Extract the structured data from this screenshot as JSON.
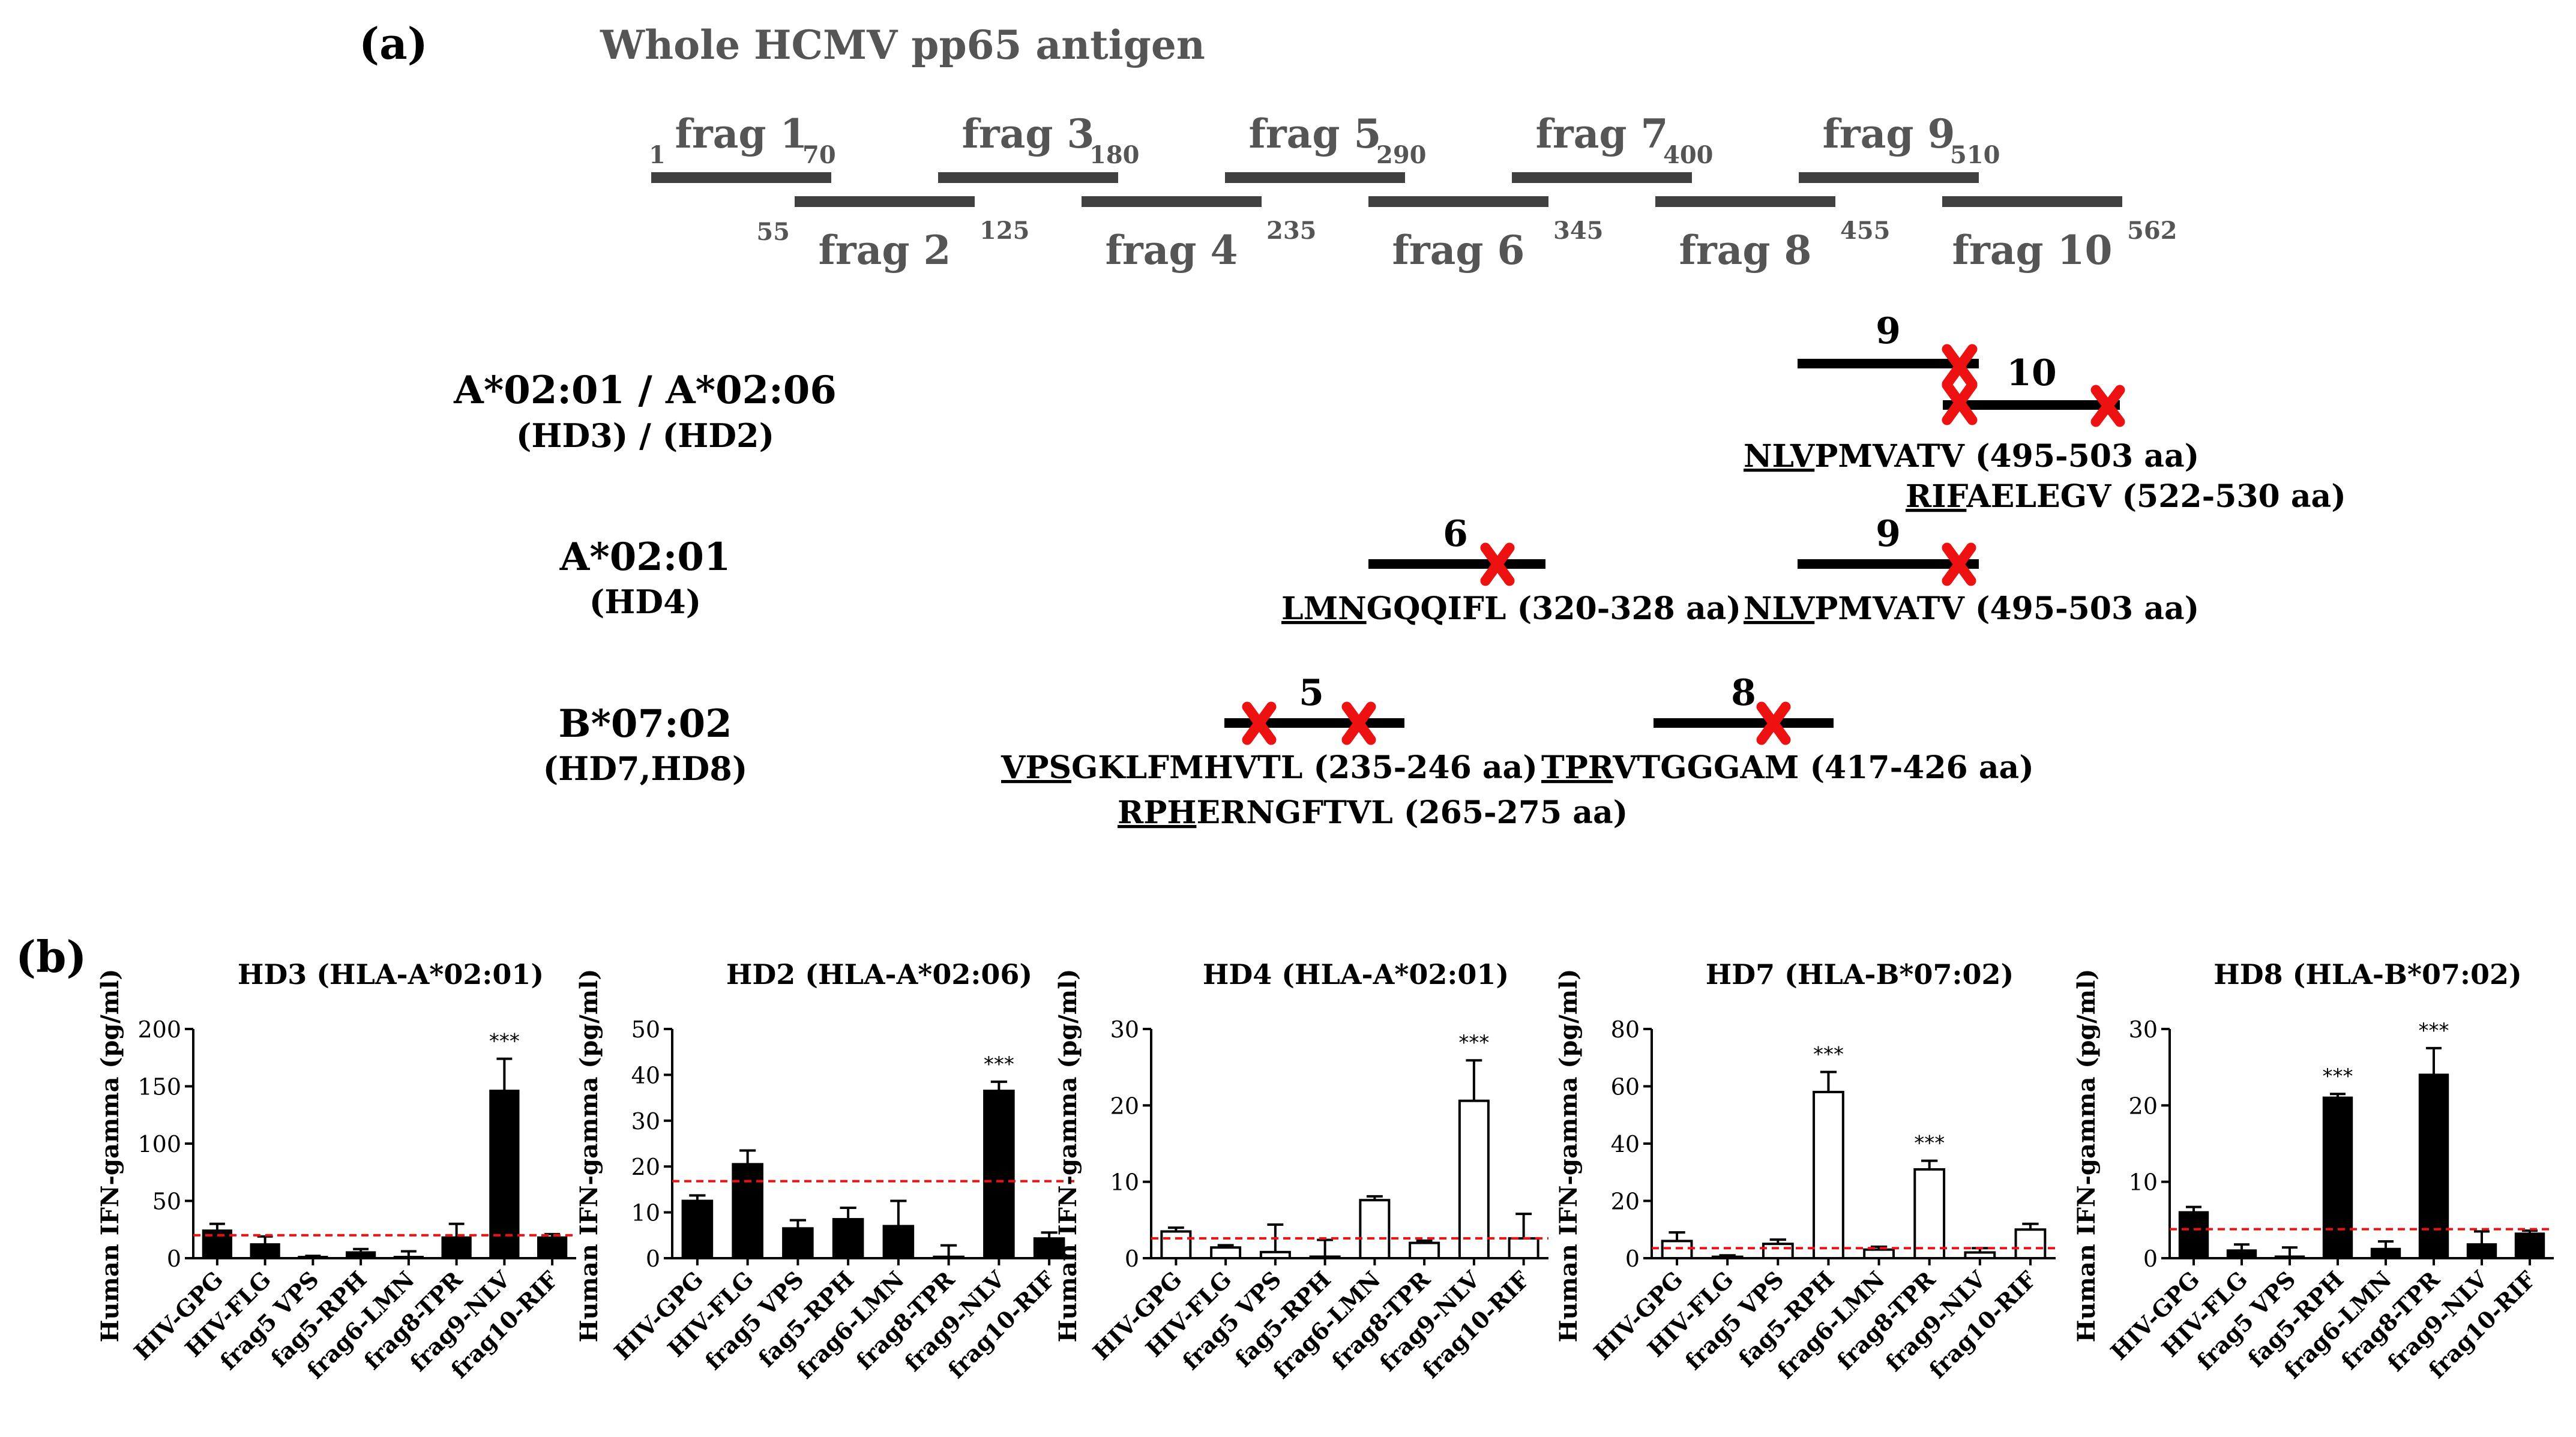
{
  "panel_a": {
    "label": "(a)",
    "title": "Whole HCMV pp65 antigen",
    "fragments": [
      {
        "name": "frag 1",
        "start": "1",
        "end": "70",
        "row": "top"
      },
      {
        "name": "frag 2",
        "start": "55",
        "end": "125",
        "row": "bottom"
      },
      {
        "name": "frag 3",
        "start": "",
        "end": "180",
        "row": "top"
      },
      {
        "name": "frag 4",
        "start": "",
        "end": "235",
        "row": "bottom"
      },
      {
        "name": "frag 5",
        "start": "",
        "end": "290",
        "row": "top"
      },
      {
        "name": "frag 6",
        "start": "",
        "end": "345",
        "row": "bottom"
      },
      {
        "name": "frag 7",
        "start": "",
        "end": "400",
        "row": "top"
      },
      {
        "name": "frag 8",
        "start": "",
        "end": "455",
        "row": "bottom"
      },
      {
        "name": "frag 9",
        "start": "",
        "end": "510",
        "row": "top"
      },
      {
        "name": "frag 10",
        "start": "",
        "end": "562",
        "row": "bottom"
      }
    ],
    "groups": [
      {
        "hla": "A*02:01 / A*02:06",
        "donor": "(HD3) / (HD2)",
        "bars": [
          {
            "num": "9"
          },
          {
            "num": "10"
          }
        ],
        "peptides": [
          {
            "underlined": "NLV",
            "rest": "PMVATV (495-503 aa)"
          },
          {
            "underlined": "RIF",
            "rest": "AELEGV (522-530 aa)"
          }
        ]
      },
      {
        "hla": "A*02:01",
        "donor": "(HD4)",
        "bars": [
          {
            "num": "6"
          },
          {
            "num": "9"
          }
        ],
        "peptides": [
          {
            "underlined": "LMN",
            "rest": "GQQIFL (320-328 aa)"
          },
          {
            "underlined": "NLV",
            "rest": "PMVATV (495-503 aa)"
          }
        ]
      },
      {
        "hla": "B*07:02",
        "donor": "(HD7,HD8)",
        "bars": [
          {
            "num": "5"
          },
          {
            "num": "8"
          }
        ],
        "peptides": [
          {
            "underlined": "VPS",
            "rest": "GKLFMHVTL (235-246 aa)"
          },
          {
            "underlined": "TPR",
            "rest": "VTGGGAM (417-426 aa)"
          },
          {
            "underlined": "RPH",
            "rest": "ERNGFTVL (265-275 aa)"
          }
        ]
      }
    ]
  },
  "panel_b": {
    "label": "(b)"
  },
  "colors": {
    "frag_bar": "#404040",
    "epitope_bar": "#000000",
    "cross": "#ee1111",
    "threshold": "#ee1111",
    "filled_bar": "#000000",
    "open_bar": "#ffffff"
  },
  "chart_data": [
    {
      "type": "bar",
      "title": "HD3 (HLA-A*02:01)",
      "ylabel": "Human IFN-gamma (pg/ml)",
      "categories": [
        "HIV-GPG",
        "HIV-FLG",
        "frag5 VPS",
        "fag5-RPH",
        "frag6-LMN",
        "frag8-TPR",
        "frag9-NLV",
        "frag10-RIF"
      ],
      "values": [
        24,
        12,
        1,
        5,
        1,
        18,
        146,
        18
      ],
      "errors": [
        6,
        7,
        1,
        3,
        5,
        12,
        28,
        3
      ],
      "ylim": [
        0,
        200
      ],
      "yticks": [
        "0",
        "50",
        "100",
        "150",
        "200"
      ],
      "threshold": 20,
      "fill": "filled",
      "significance": [
        {
          "index": 6,
          "label": "***"
        }
      ]
    },
    {
      "type": "bar",
      "title": "HD2 (HLA-A*02:06)",
      "ylabel": "Human IFN-gamma (pg/ml)",
      "categories": [
        "HIV-GPG",
        "HIV-FLG",
        "frag5 VPS",
        "fag5-RPH",
        "frag6-LMN",
        "frag8-TPR",
        "frag9-NLV",
        "frag10-RIF"
      ],
      "values": [
        12.5,
        20.5,
        6.5,
        8.5,
        7,
        0.3,
        36.5,
        4.3
      ],
      "errors": [
        1.2,
        3,
        1.8,
        2.5,
        5.5,
        2.5,
        2,
        1.3
      ],
      "ylim": [
        0,
        50
      ],
      "yticks": [
        "0",
        "10",
        "20",
        "30",
        "40",
        "50"
      ],
      "threshold": 16.8,
      "fill": "filled",
      "significance": [
        {
          "index": 6,
          "label": "***"
        }
      ]
    },
    {
      "type": "bar",
      "title": "HD4 (HLA-A*02:01)",
      "ylabel": "Human IFN-gamma (pg/ml)",
      "categories": [
        "HIV-GPG",
        "HIV-FLG",
        "frag5 VPS",
        "fag5-RPH",
        "frag6-LMN",
        "frag8-TPR",
        "frag9-NLV",
        "frag10-RIF"
      ],
      "values": [
        3.5,
        1.4,
        0.8,
        0.2,
        7.6,
        2,
        20.6,
        2.6
      ],
      "errors": [
        0.5,
        0.3,
        3.6,
        2.2,
        0.5,
        0.3,
        5.3,
        3.2
      ],
      "ylim": [
        0,
        30
      ],
      "yticks": [
        "0",
        "10",
        "20",
        "30"
      ],
      "threshold": 2.6,
      "fill": "open",
      "significance": [
        {
          "index": 6,
          "label": "***"
        }
      ]
    },
    {
      "type": "bar",
      "title": "HD7 (HLA-B*07:02)",
      "ylabel": "Human IFN-gamma (pg/ml)",
      "categories": [
        "HIV-GPG",
        "HIV-FLG",
        "frag5 VPS",
        "fag5-RPH",
        "frag6-LMN",
        "frag8-TPR",
        "frag9-NLV",
        "frag10-RIF"
      ],
      "values": [
        6,
        0.5,
        5,
        58,
        3,
        31,
        2,
        10
      ],
      "errors": [
        3,
        0.5,
        1.5,
        7,
        1,
        3,
        1.5,
        2
      ],
      "ylim": [
        0,
        80
      ],
      "yticks": [
        "0",
        "20",
        "40",
        "60",
        "80"
      ],
      "threshold": 3.5,
      "fill": "open",
      "significance": [
        {
          "index": 3,
          "label": "***"
        },
        {
          "index": 5,
          "label": "***"
        }
      ]
    },
    {
      "type": "bar",
      "title": "HD8 (HLA-B*07:02)",
      "ylabel": "Human IFN-gamma (pg/ml)",
      "categories": [
        "HIV-GPG",
        "HIV-FLG",
        "frag5 VPS",
        "fag5-RPH",
        "frag6-LMN",
        "frag8-TPR",
        "frag9-NLV",
        "frag10-RIF"
      ],
      "values": [
        6,
        1,
        0.2,
        21,
        1.2,
        24,
        1.8,
        3.2
      ],
      "errors": [
        0.7,
        0.8,
        1.2,
        0.5,
        1,
        3.5,
        1.7,
        0.4
      ],
      "ylim": [
        0,
        30
      ],
      "yticks": [
        "0",
        "10",
        "20",
        "30"
      ],
      "threshold": 3.8,
      "fill": "filled",
      "significance": [
        {
          "index": 3,
          "label": "***"
        },
        {
          "index": 5,
          "label": "***"
        }
      ]
    }
  ]
}
